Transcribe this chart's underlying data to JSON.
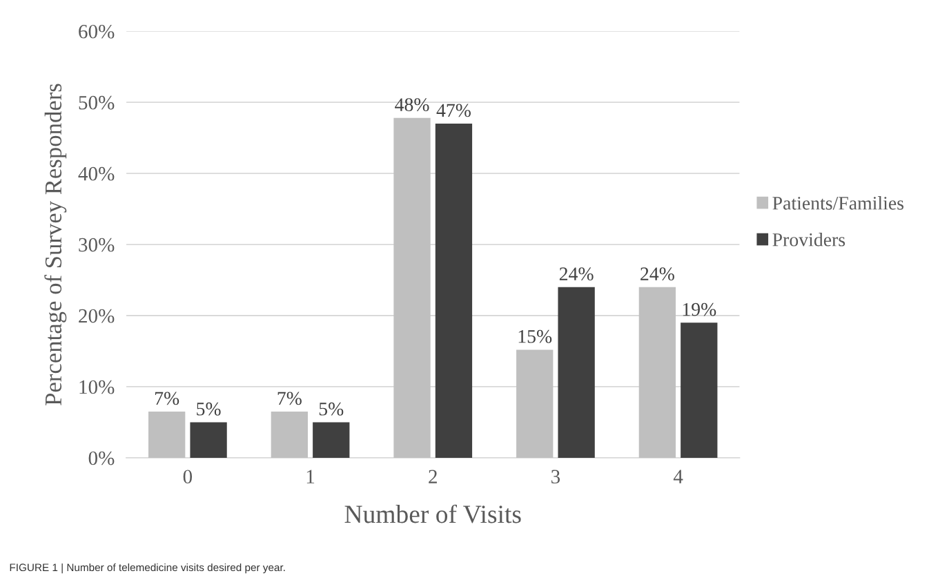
{
  "chart_data": {
    "type": "bar",
    "xlabel": "Number of Visits",
    "ylabel": "Percentage of Survey Responders",
    "categories": [
      "0",
      "1",
      "2",
      "3",
      "4"
    ],
    "series": [
      {
        "name": "Patients/Families",
        "color": "#bfbfbf",
        "values": [
          6.5,
          6.5,
          47.8,
          15.2,
          24
        ],
        "value_labels": [
          "7%",
          "7%",
          "48%",
          "15%",
          "24%"
        ]
      },
      {
        "name": "Providers",
        "color": "#404040",
        "values": [
          5,
          5,
          47,
          24,
          19
        ],
        "value_labels": [
          "5%",
          "5%",
          "47%",
          "24%",
          "19%"
        ]
      }
    ],
    "ylim": [
      0,
      60
    ],
    "yticks": [
      {
        "value": 0,
        "label": "0%"
      },
      {
        "value": 10,
        "label": "10%"
      },
      {
        "value": 20,
        "label": "20%"
      },
      {
        "value": 30,
        "label": "30%"
      },
      {
        "value": 40,
        "label": "40%"
      },
      {
        "value": 50,
        "label": "50%"
      },
      {
        "value": 60,
        "label": "60%"
      }
    ],
    "grid": "y",
    "legend": "right",
    "annotations": [
      "FIGURE 1 | Number of telemedicine visits desired per year."
    ]
  }
}
